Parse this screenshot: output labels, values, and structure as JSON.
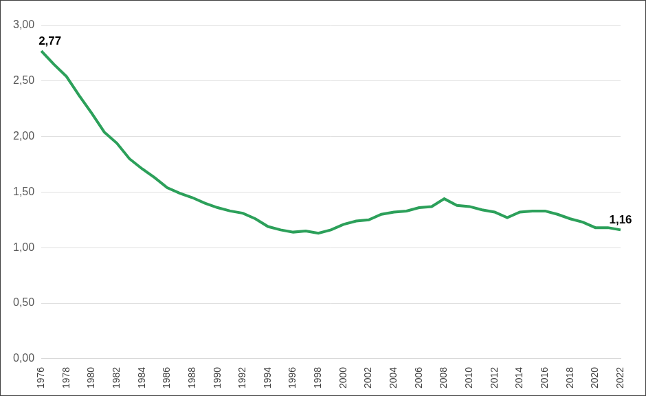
{
  "chart_data": {
    "type": "line",
    "categories": [
      "1976",
      null,
      "1978",
      null,
      "1980",
      null,
      "1982",
      null,
      "1984",
      null,
      "1986",
      null,
      "1988",
      null,
      "1990",
      null,
      "1992",
      null,
      "1994",
      null,
      "1996",
      null,
      "1998",
      null,
      "2000",
      null,
      "2002",
      null,
      "2004",
      null,
      "2006",
      null,
      "2008",
      null,
      "2010",
      null,
      "2012",
      null,
      "2014",
      null,
      "2016",
      null,
      "2018",
      null,
      "2020",
      null,
      "2022"
    ],
    "values": [
      2.77,
      2.65,
      2.54,
      2.37,
      2.21,
      2.04,
      1.94,
      1.8,
      1.71,
      1.63,
      1.54,
      1.49,
      1.45,
      1.4,
      1.36,
      1.33,
      1.31,
      1.26,
      1.19,
      1.16,
      1.14,
      1.15,
      1.13,
      1.16,
      1.21,
      1.24,
      1.25,
      1.3,
      1.32,
      1.33,
      1.36,
      1.37,
      1.44,
      1.38,
      1.37,
      1.34,
      1.32,
      1.27,
      1.32,
      1.33,
      1.33,
      1.3,
      1.26,
      1.23,
      1.18,
      1.18,
      1.16
    ],
    "color": "#2ca05a",
    "ylim": [
      0,
      3
    ],
    "yticks": [
      {
        "value": 0,
        "label": "0,00"
      },
      {
        "value": 0.5,
        "label": "0,50"
      },
      {
        "value": 1,
        "label": "1,00"
      },
      {
        "value": 1.5,
        "label": "1,50"
      },
      {
        "value": 2,
        "label": "2,00"
      },
      {
        "value": 2.5,
        "label": "2,50"
      },
      {
        "value": 3,
        "label": "3,00"
      }
    ],
    "grid": true,
    "annotations": [
      {
        "label": "2,77",
        "category": "1976",
        "value": 2.77
      },
      {
        "label": "1,16",
        "category": "2022",
        "value": 1.16
      }
    ]
  }
}
